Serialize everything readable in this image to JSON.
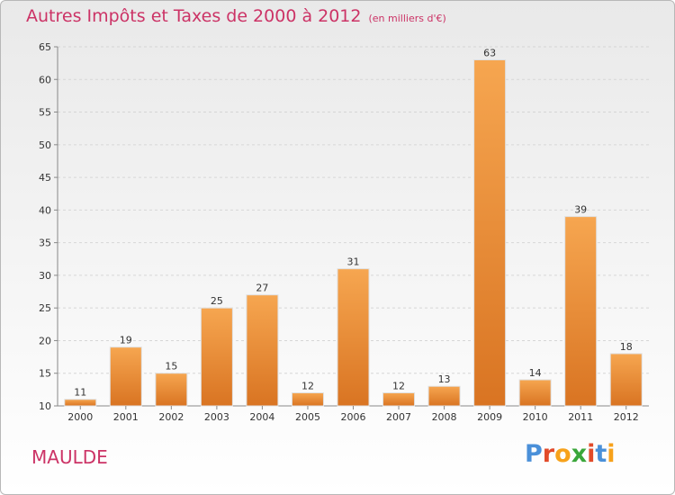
{
  "header": {
    "title": "Autres Impôts et Taxes de 2000 à 2012",
    "unit": "(en milliers d'€)"
  },
  "footer": {
    "place": "MAULDE",
    "brand": "Proxiti"
  },
  "colors": {
    "title": "#cc3366",
    "bar_top": "#f6a650",
    "bar_bottom": "#d97422",
    "grid": "#d6d6d6",
    "brand_letters": [
      "#4a90d9",
      "#e24b2a",
      "#f7a21b",
      "#3aa63a",
      "#e24b2a",
      "#4a90d9",
      "#f7a21b"
    ]
  },
  "chart_data": {
    "type": "bar",
    "categories": [
      "2000",
      "2001",
      "2002",
      "2003",
      "2004",
      "2005",
      "2006",
      "2007",
      "2008",
      "2009",
      "2010",
      "2011",
      "2012"
    ],
    "values": [
      11,
      19,
      15,
      25,
      27,
      12,
      31,
      12,
      13,
      63,
      14,
      39,
      18
    ],
    "ylim": [
      10,
      65
    ],
    "yticks": [
      10,
      15,
      20,
      25,
      30,
      35,
      40,
      45,
      50,
      55,
      60,
      65
    ],
    "grid": true
  }
}
